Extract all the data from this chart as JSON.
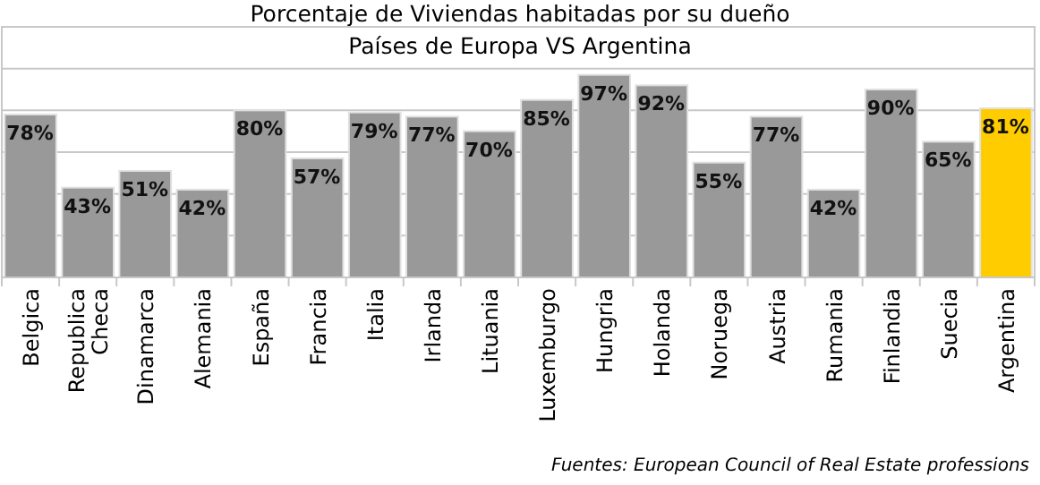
{
  "chart_data": {
    "type": "bar",
    "title": "Porcentaje de Viviendas habitadas por su dueño",
    "subtitle": "Países de Europa VS Argentina",
    "categories": [
      "Belgica",
      "Republica Checa",
      "Dinamarca",
      "Alemania",
      "España",
      "Francia",
      "Italia",
      "Irlanda",
      "Lituania",
      "Luxemburgo",
      "Hungria",
      "Holanda",
      "Noruega",
      "Austria",
      "Rumania",
      "Finlandia",
      "Suecia",
      "Argentina"
    ],
    "values": [
      78,
      43,
      51,
      42,
      80,
      57,
      79,
      77,
      70,
      85,
      97,
      92,
      55,
      77,
      42,
      90,
      65,
      81
    ],
    "colors": [
      "#999999",
      "#999999",
      "#999999",
      "#999999",
      "#999999",
      "#999999",
      "#999999",
      "#999999",
      "#999999",
      "#999999",
      "#999999",
      "#999999",
      "#999999",
      "#999999",
      "#999999",
      "#999999",
      "#999999",
      "#ffcc00"
    ],
    "value_labels": [
      "78%",
      "43%",
      "51%",
      "42%",
      "80%",
      "57%",
      "79%",
      "77%",
      "70%",
      "85%",
      "97%",
      "92%",
      "55%",
      "77%",
      "42%",
      "90%",
      "65%",
      "81%"
    ],
    "ylim": [
      0,
      120
    ],
    "yticks": [
      {
        "value": 0,
        "label": null
      },
      {
        "value": 20,
        "label": null
      },
      {
        "value": 40,
        "label": null
      },
      {
        "value": 60,
        "label": null
      },
      {
        "value": 80,
        "label": null
      },
      {
        "value": 100,
        "label": null
      },
      {
        "value": 120,
        "label": null
      }
    ],
    "grid": "y",
    "tick_labels": "x",
    "annotations": [
      "Fuentes: European Council of Real Estate professions"
    ]
  }
}
